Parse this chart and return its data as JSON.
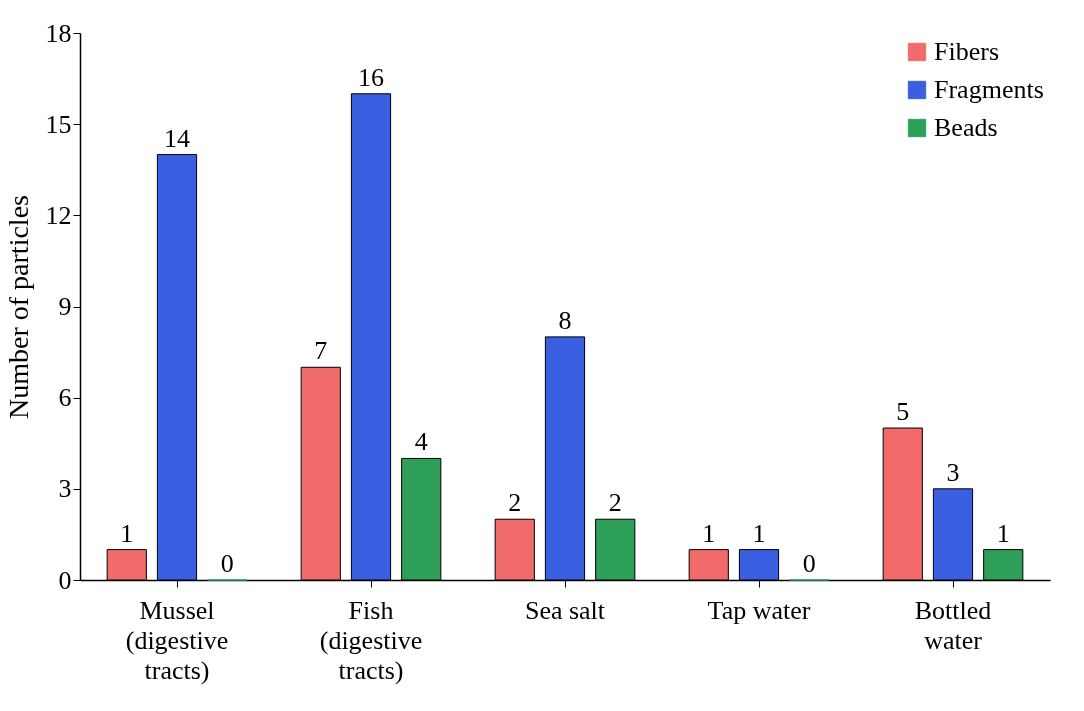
{
  "chart_data": {
    "type": "bar",
    "ylabel": "Number of particles",
    "categories": [
      "Mussel (digestive tracts)",
      "Fish (digestive tracts)",
      "Sea salt",
      "Tap water",
      "Bottled water"
    ],
    "series": [
      {
        "name": "Fibers",
        "color": "#f26b6b",
        "values": [
          1,
          7,
          2,
          1,
          5
        ]
      },
      {
        "name": "Fragments",
        "color": "#3a5fe0",
        "values": [
          14,
          16,
          8,
          1,
          3
        ]
      },
      {
        "name": "Beads",
        "color": "#2ea05a",
        "values": [
          0,
          4,
          2,
          0,
          1
        ]
      }
    ],
    "ylim": [
      0,
      18
    ],
    "yticks": [
      0,
      3,
      6,
      9,
      12,
      15,
      18
    ],
    "grid": false,
    "legend": "top right",
    "data_labels": true
  }
}
